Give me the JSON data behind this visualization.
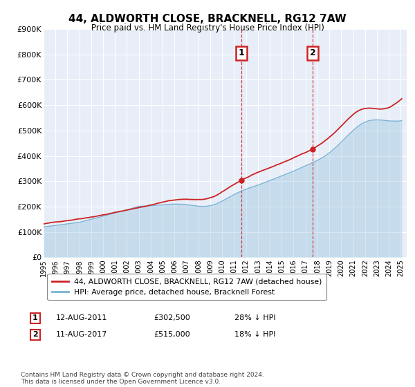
{
  "title": "44, ALDWORTH CLOSE, BRACKNELL, RG12 7AW",
  "subtitle": "Price paid vs. HM Land Registry's House Price Index (HPI)",
  "ylim": [
    0,
    900000
  ],
  "yticks": [
    0,
    100000,
    200000,
    300000,
    400000,
    500000,
    600000,
    700000,
    800000,
    900000
  ],
  "ytick_labels": [
    "£0",
    "£100K",
    "£200K",
    "£300K",
    "£400K",
    "£500K",
    "£600K",
    "£700K",
    "£800K",
    "£900K"
  ],
  "xlim_start": 1995.0,
  "xlim_end": 2025.5,
  "hpi_color": "#7ab3d4",
  "price_color": "#cc2222",
  "hpi_fill_alpha": 0.3,
  "sale1_date": 2011.62,
  "sale1_price": 302500,
  "sale2_date": 2017.62,
  "sale2_price": 515000,
  "legend_line1": "44, ALDWORTH CLOSE, BRACKNELL, RG12 7AW (detached house)",
  "legend_line2": "HPI: Average price, detached house, Bracknell Forest",
  "table_row1_num": "1",
  "table_row1_date": "12-AUG-2011",
  "table_row1_price": "£302,500",
  "table_row1_hpi": "28% ↓ HPI",
  "table_row2_num": "2",
  "table_row2_date": "11-AUG-2017",
  "table_row2_price": "£515,000",
  "table_row2_hpi": "18% ↓ HPI",
  "footnote": "Contains HM Land Registry data © Crown copyright and database right 2024.\nThis data is licensed under the Open Government Licence v3.0.",
  "background_color": "#ffffff",
  "plot_bg_color": "#e8eef8"
}
